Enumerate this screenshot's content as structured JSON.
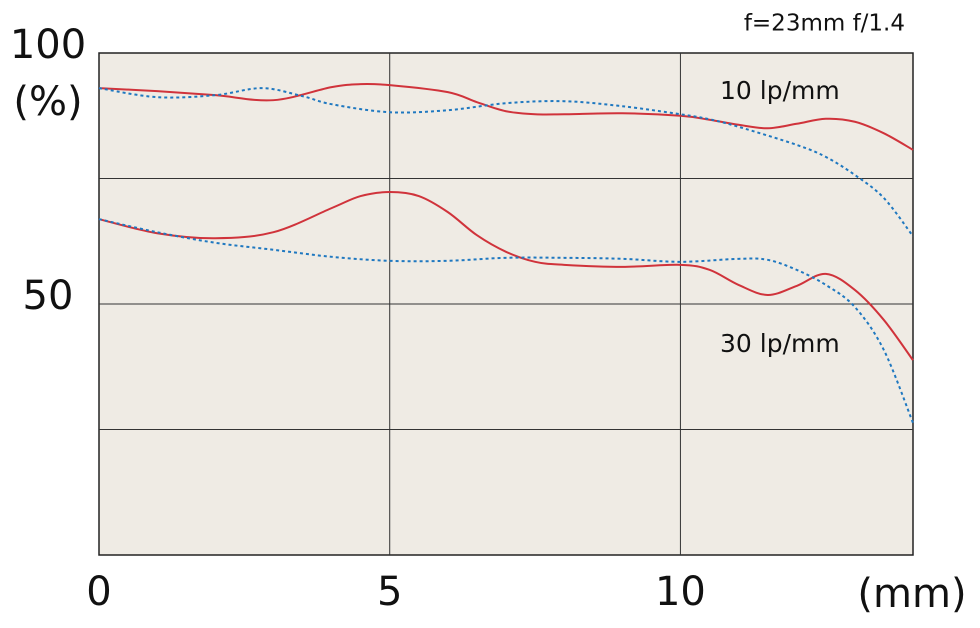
{
  "chart_data": {
    "type": "line",
    "title": "f=23mm f/1.4",
    "ylabel": "(%)",
    "xlabel": "(mm)",
    "annotations": [
      "10 lp/mm",
      "30 lp/mm"
    ],
    "xlim": [
      0,
      14
    ],
    "xticks": [
      0,
      5,
      10
    ],
    "ylim": [
      0,
      100
    ],
    "yticks": [
      50,
      100
    ],
    "grid_y": [
      25,
      50,
      75
    ],
    "grid_x": [
      5,
      10
    ],
    "background": "#efebe4",
    "series": [
      {
        "color": "#d0333b",
        "dash": false,
        "x": [
          0,
          1,
          2,
          3,
          4,
          4.5,
          5,
          6,
          6.5,
          7,
          7.5,
          8,
          9,
          10,
          10.5,
          11,
          11.5,
          12,
          12.5,
          13,
          13.5,
          14
        ],
        "values": [
          93,
          92.4,
          91.6,
          90.6,
          93.2,
          93.8,
          93.6,
          92.2,
          90.2,
          88.4,
          87.8,
          87.8,
          88,
          87.5,
          86.7,
          85.7,
          85,
          85.9,
          86.9,
          86.3,
          84,
          80.7
        ]
      },
      {
        "color": "#1f78c0",
        "dash": true,
        "x": [
          0,
          1,
          2,
          2.8,
          3.5,
          4,
          5,
          6,
          7,
          8,
          9,
          10,
          10.5,
          11,
          12,
          12.5,
          13,
          13.5,
          14
        ],
        "values": [
          93,
          91.2,
          91.6,
          93,
          91.4,
          89.8,
          88.2,
          88.6,
          90,
          90.4,
          89.4,
          87.8,
          86.8,
          85.3,
          81.7,
          79.3,
          75.7,
          71.1,
          63.5
        ]
      },
      {
        "color": "#d0333b",
        "dash": false,
        "x": [
          0,
          1,
          2,
          3,
          4,
          4.5,
          5,
          5.5,
          6,
          6.5,
          7,
          7.5,
          8,
          9,
          10,
          10.5,
          11,
          11.5,
          12,
          12.5,
          13,
          13.5,
          14
        ],
        "values": [
          66.9,
          64.1,
          63.1,
          64.3,
          69.1,
          71.5,
          72.3,
          71.5,
          68.3,
          63.7,
          60.4,
          58.4,
          57.8,
          57.4,
          57.8,
          56.8,
          53.8,
          51.8,
          53.6,
          56,
          52.8,
          46.8,
          38.8
        ]
      },
      {
        "color": "#1f78c0",
        "dash": true,
        "x": [
          0,
          1,
          2,
          3,
          4,
          5,
          6,
          7,
          8,
          9,
          10,
          11,
          11.5,
          12,
          12.5,
          13,
          13.5,
          14
        ],
        "values": [
          66.9,
          64.3,
          62.2,
          60.8,
          59.4,
          58.6,
          58.6,
          59.2,
          59.2,
          59,
          58.4,
          59,
          58.8,
          56.8,
          53.8,
          49.4,
          40.8,
          26.3
        ]
      }
    ]
  }
}
